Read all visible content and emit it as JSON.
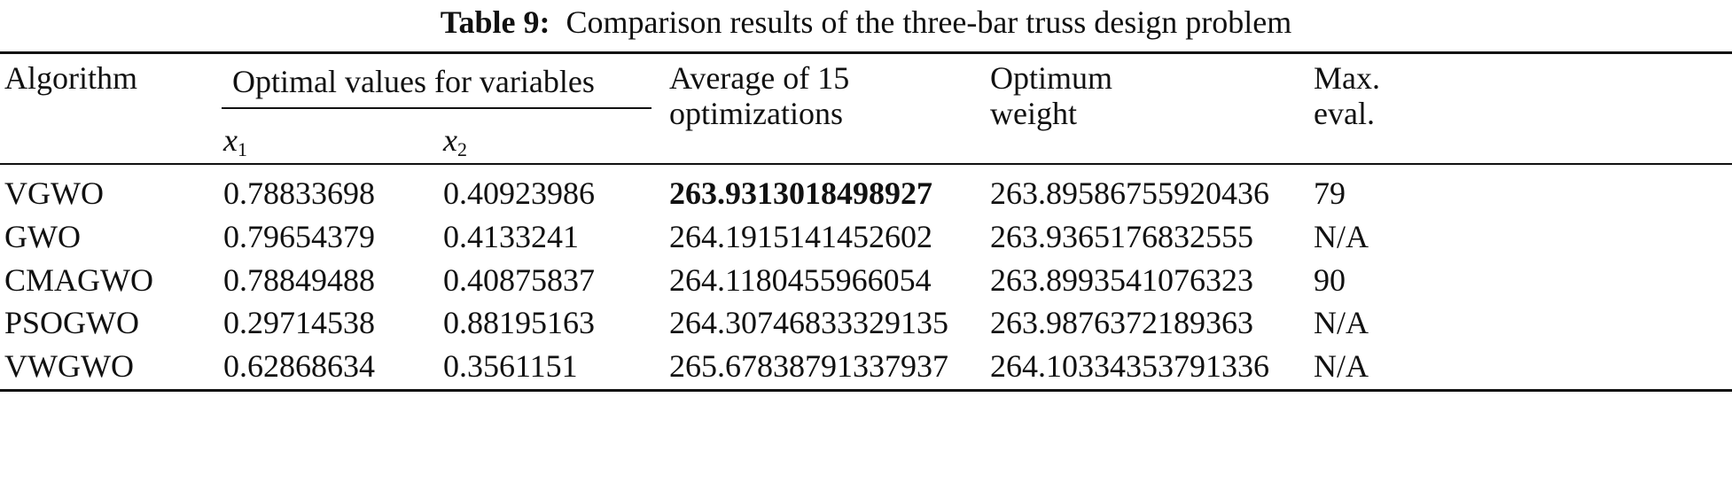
{
  "title": {
    "label": "Table 9:",
    "text": "Comparison results of the three-bar truss design problem"
  },
  "table": {
    "header": {
      "algorithm": "Algorithm",
      "group": "Optimal values for variables",
      "variables": [
        {
          "symbol": "x",
          "index": "1"
        },
        {
          "symbol": "x",
          "index": "2"
        }
      ],
      "average": [
        "Average of 15",
        "optimizations"
      ],
      "optimum": [
        "Optimum",
        "weight"
      ],
      "max_eval": [
        "Max.",
        "eval."
      ]
    },
    "rows": [
      [
        "VGWO",
        "0.78833698",
        "0.40923986",
        "263.9313018498927",
        "263.89586755920436",
        "79"
      ],
      [
        "GWO",
        "0.79654379",
        "0.4133241",
        "264.1915141452602",
        "263.9365176832555",
        "N/A"
      ],
      [
        "CMAGWO",
        "0.78849488",
        "0.40875837",
        "264.1180455966054",
        "263.8993541076323",
        "90"
      ],
      [
        "PSOGWO",
        "0.29714538",
        "0.88195163",
        "264.30746833329135",
        "263.9876372189363",
        "N/A"
      ],
      [
        "VWGWO",
        "0.62868634",
        "0.3561151",
        "265.67838791337937",
        "264.10334353791336",
        "N/A"
      ]
    ]
  }
}
